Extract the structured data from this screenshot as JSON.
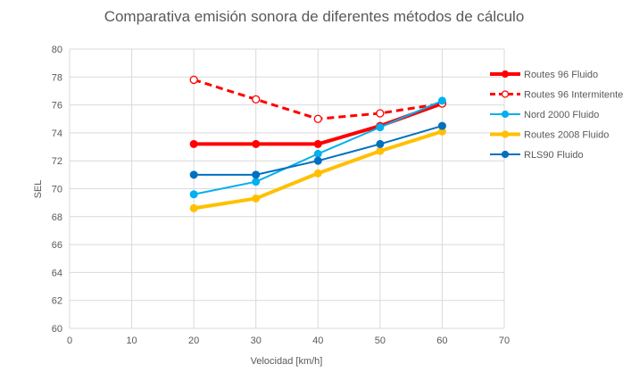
{
  "chart_data": {
    "type": "line",
    "title": "Comparativa emisión sonora de diferentes métodos de cálculo",
    "xlabel": "Velocidad [km/h]",
    "ylabel": "SEL",
    "xlim": [
      0,
      70
    ],
    "ylim": [
      60,
      80
    ],
    "xticks": [
      0,
      10,
      20,
      30,
      40,
      50,
      60,
      70
    ],
    "yticks": [
      60,
      62,
      64,
      66,
      68,
      70,
      72,
      74,
      76,
      78,
      80
    ],
    "grid": true,
    "legend_position": "right",
    "x": [
      20,
      30,
      40,
      50,
      60
    ],
    "series": [
      {
        "name": "Routes 96 Fluido",
        "values": [
          73.2,
          73.2,
          73.2,
          74.5,
          76.1
        ],
        "color": "#FF0000",
        "dashed": false,
        "hollow": false,
        "width": 4
      },
      {
        "name": "Routes 96 Intermitente",
        "values": [
          77.8,
          76.4,
          75.0,
          75.4,
          76.1
        ],
        "color": "#FF0000",
        "dashed": true,
        "hollow": true,
        "width": 3
      },
      {
        "name": "Nord 2000 Fluido",
        "values": [
          69.6,
          70.5,
          72.5,
          74.4,
          76.3
        ],
        "color": "#00B0F0",
        "dashed": false,
        "hollow": false,
        "width": 2
      },
      {
        "name": "Routes 2008 Fluido",
        "values": [
          68.6,
          69.3,
          71.1,
          72.7,
          74.1
        ],
        "color": "#FFC000",
        "dashed": false,
        "hollow": false,
        "width": 4
      },
      {
        "name": "RLS90 Fluido",
        "values": [
          71.0,
          71.0,
          72.0,
          73.2,
          74.5
        ],
        "color": "#0070C0",
        "dashed": false,
        "hollow": false,
        "width": 2
      }
    ]
  }
}
